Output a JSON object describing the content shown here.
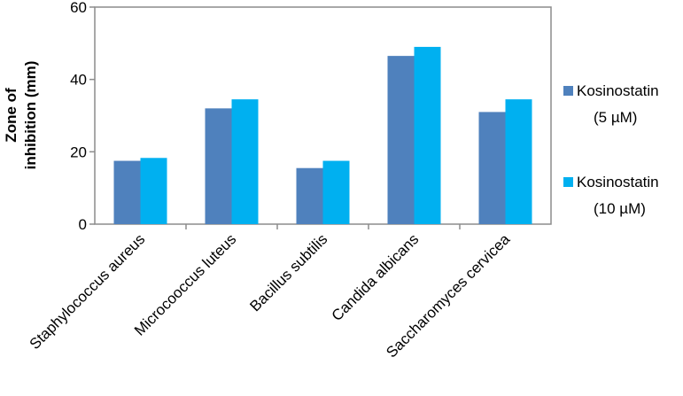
{
  "chart_data": {
    "type": "bar",
    "categories": [
      "Staphylococcus aureus",
      "Microcooccus luteus",
      "Bacillus subtilis",
      "Candida albicans",
      "Saccharomyces cervicea"
    ],
    "series": [
      {
        "name": "Kosinostatin (5 µM)",
        "legend_lines": [
          "Kosinostatin",
          "(5 µM)"
        ],
        "color": "#4f81bd",
        "values": [
          17.5,
          32,
          15.5,
          46.5,
          31
        ]
      },
      {
        "name": "Kosinostatin (10 µM)",
        "legend_lines": [
          "Kosinostatin",
          "(10 µM)"
        ],
        "color": "#00b0f0",
        "values": [
          18.3,
          34.5,
          17.5,
          49,
          34.5
        ]
      }
    ],
    "ylabel_lines": [
      "Zone of",
      "inhibition (mm)"
    ],
    "ylim": [
      0,
      60
    ],
    "yticks": [
      0,
      20,
      40,
      60
    ],
    "grid": false,
    "legend_position": "right"
  }
}
